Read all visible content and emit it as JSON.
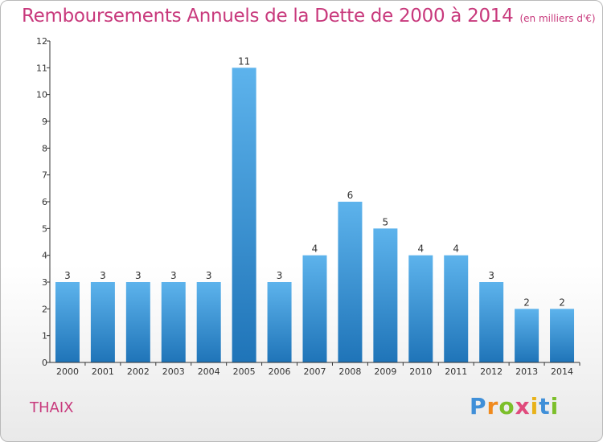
{
  "header": {
    "title": "Remboursements Annuels de la Dette de 2000 à 2014",
    "subtitle": "(en milliers d'€)"
  },
  "footer": {
    "commune": "THAIX",
    "logo_text": "Proxiti"
  },
  "colors": {
    "title": "#c8397c",
    "bar_top": "#5db3ec",
    "bar_bottom": "#1f74b8",
    "axis": "#333333"
  },
  "chart_data": {
    "type": "bar",
    "title": "Remboursements Annuels de la Dette de 2000 à 2014",
    "subtitle": "(en milliers d'€)",
    "xlabel": "",
    "ylabel": "",
    "categories": [
      "2000",
      "2001",
      "2002",
      "2003",
      "2004",
      "2005",
      "2006",
      "2007",
      "2008",
      "2009",
      "2010",
      "2011",
      "2012",
      "2013",
      "2014"
    ],
    "values": [
      3,
      3,
      3,
      3,
      3,
      11,
      3,
      4,
      6,
      5,
      4,
      4,
      3,
      2,
      2
    ],
    "data_labels": [
      "3",
      "3",
      "3",
      "3",
      "3",
      "11",
      "3",
      "4",
      "6",
      "5",
      "4",
      "4",
      "3",
      "2",
      "2"
    ],
    "ylim": [
      0,
      12
    ],
    "yticks": [
      "0",
      "1",
      "2",
      "3",
      "4",
      "5",
      "6",
      "7",
      "8",
      "9",
      "10",
      "11",
      "12"
    ],
    "grid": false,
    "legend": "none"
  }
}
